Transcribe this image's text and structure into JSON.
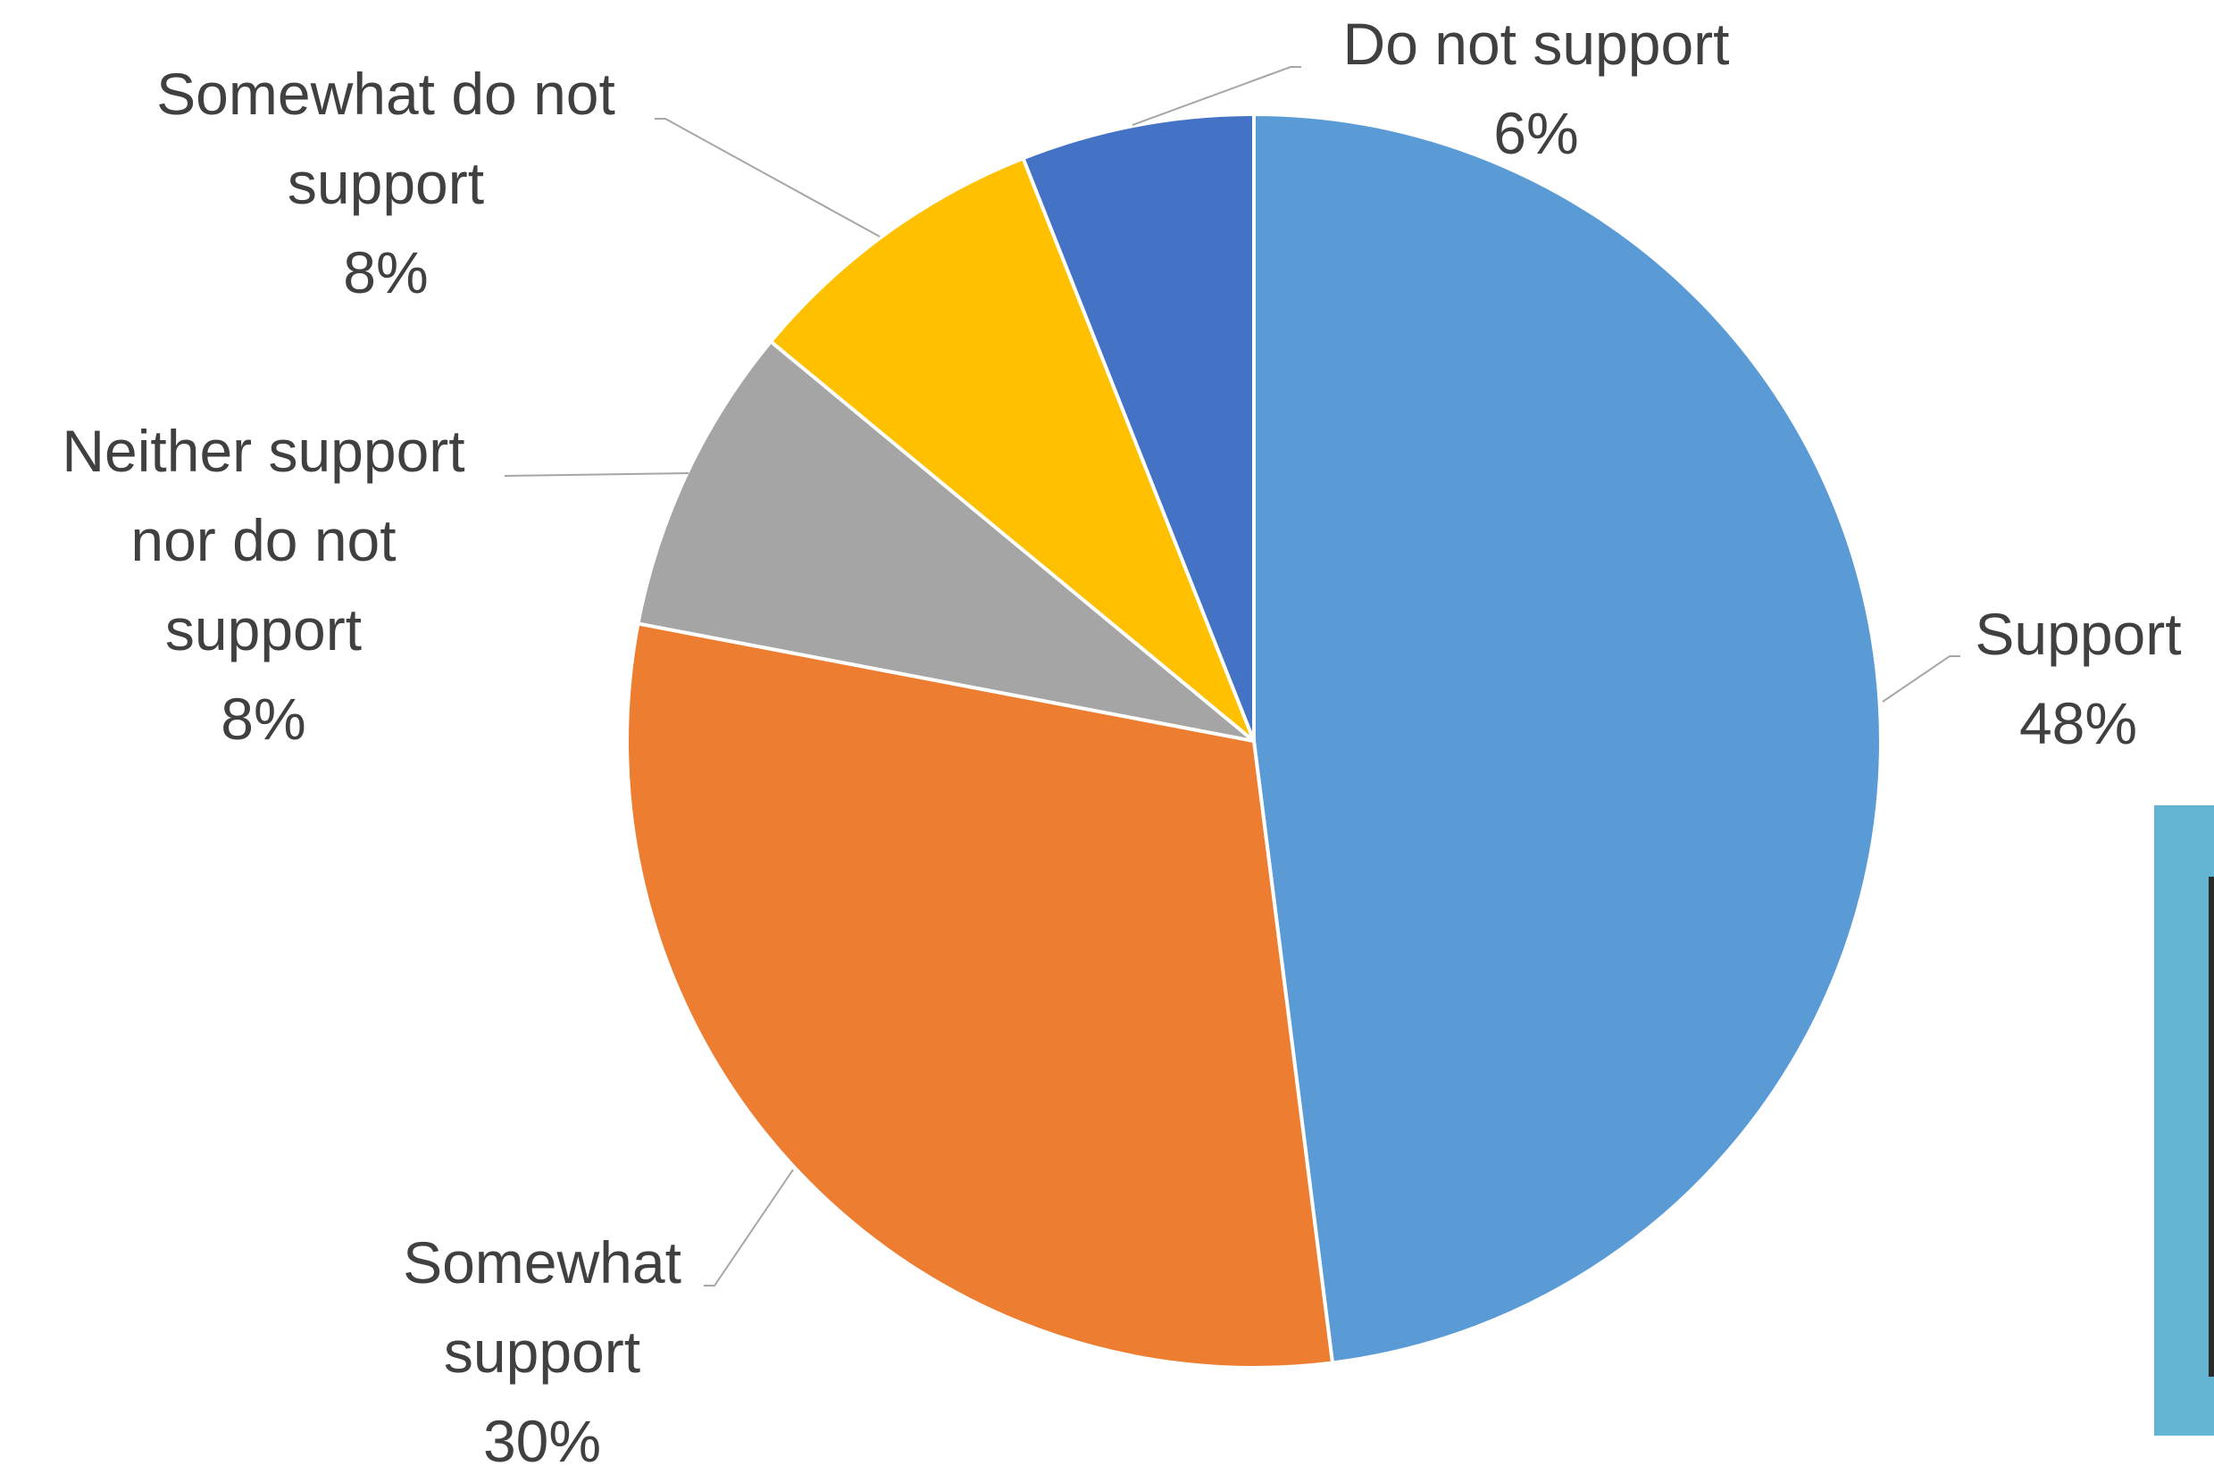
{
  "chart_data": {
    "type": "pie",
    "title": "",
    "start_angle_deg": 0,
    "direction": "clockwise",
    "slices": [
      {
        "label": "Support",
        "value": 48,
        "display": "48%",
        "color": "#5b9bd5"
      },
      {
        "label": "Somewhat support",
        "value": 30,
        "display": "30%",
        "color": "#ed7d31"
      },
      {
        "label": "Neither support nor do not support",
        "value": 8,
        "display": "8%",
        "color": "#a5a5a5"
      },
      {
        "label": "Somewhat do not support",
        "value": 8,
        "display": "8%",
        "color": "#ffc000"
      },
      {
        "label": "Do not support",
        "value": 6,
        "display": "6%",
        "color": "#4472c4"
      }
    ],
    "slice_border_color": "#ffffff",
    "label_color": "#404040",
    "leader_color": "#a6a6a6"
  },
  "side_panel": {
    "color": "#63b4d1"
  }
}
